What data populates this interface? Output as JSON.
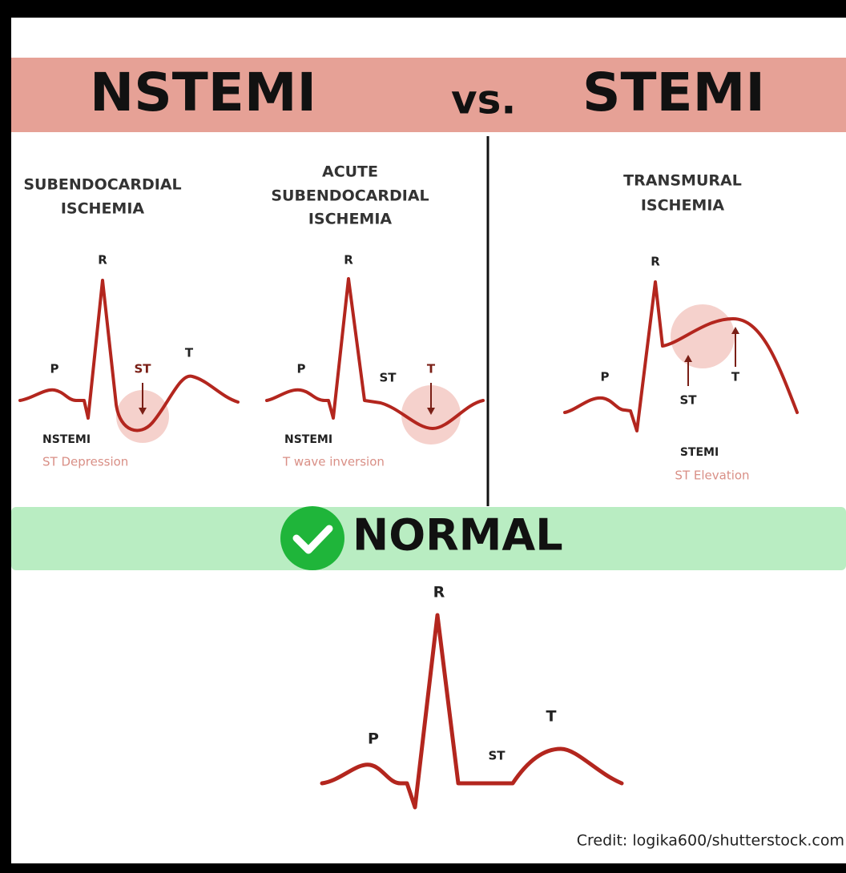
{
  "header": {
    "left": "NSTEMI",
    "middle": "vs.",
    "right": "STEMI"
  },
  "panels": [
    {
      "heading": [
        "SUBENDOCARDIAL",
        "ISCHEMIA"
      ],
      "labels": {
        "r": "R",
        "p": "P",
        "st": "ST",
        "t": "T"
      },
      "diagnosis": "NSTEMI",
      "finding": "ST Depression"
    },
    {
      "heading": [
        "ACUTE",
        "SUBENDOCARDIAL",
        "ISCHEMIA"
      ],
      "labels": {
        "r": "R",
        "p": "P",
        "st": "ST",
        "t": "T"
      },
      "diagnosis": "NSTEMI",
      "finding": "T wave inversion"
    },
    {
      "heading": [
        "TRANSMURAL",
        "ISCHEMIA"
      ],
      "labels": {
        "r": "R",
        "p": "P",
        "st": "ST",
        "t": "T"
      },
      "diagnosis": "STEMI",
      "finding": "ST Elevation"
    }
  ],
  "normal": {
    "title": "NORMAL",
    "labels": {
      "r": "R",
      "p": "P",
      "st": "ST",
      "t": "T"
    }
  },
  "credit": "Credit: logika600/shutterstock.com"
}
